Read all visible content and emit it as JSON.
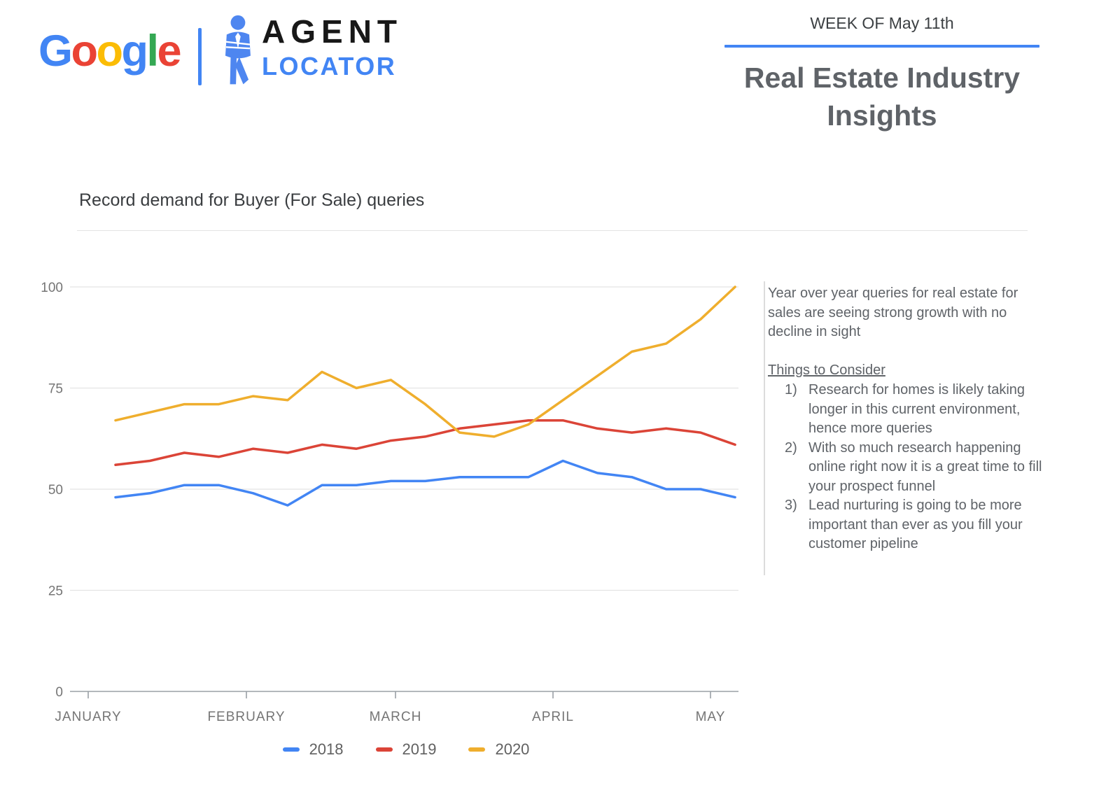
{
  "header": {
    "google_letters": [
      {
        "ch": "G",
        "color": "#4285F4"
      },
      {
        "ch": "o",
        "color": "#EA4335"
      },
      {
        "ch": "o",
        "color": "#FBBC05"
      },
      {
        "ch": "g",
        "color": "#4285F4"
      },
      {
        "ch": "l",
        "color": "#34A853"
      },
      {
        "ch": "e",
        "color": "#EA4335"
      }
    ],
    "agentlocator": {
      "line1": "AGENT",
      "line2": "LOCATOR"
    },
    "week_label": "WEEK OF May 11th",
    "title_line1": "Real Estate Industry",
    "title_line2": "Insights",
    "accent_color": "#4285F4"
  },
  "chart_section": {
    "title": "Record demand for Buyer (For Sale) queries"
  },
  "sidebar_notes": {
    "paragraph": "Year over year queries for real estate for sales are seeing strong growth with no decline in sight",
    "list_title": "Things to Consider",
    "items": [
      "Research for homes is likely taking longer in this current environment, hence more queries",
      "With so much research happening online right now it is a great time to fill your prospect funnel",
      "Lead nurturing is going to be more important than ever as you fill your customer pipeline"
    ]
  },
  "chart_data": {
    "type": "line",
    "title": "Record demand for Buyer (For Sale) queries",
    "x_unit": "weekly points, January through week of May 11",
    "x_tick_labels": [
      "JANUARY",
      "FEBRUARY",
      "MARCH",
      "APRIL",
      "MAY"
    ],
    "y_ticks": [
      0,
      25,
      50,
      75,
      100
    ],
    "ylim": [
      0,
      100
    ],
    "grid": true,
    "legend_position": "bottom",
    "series": [
      {
        "name": "2018",
        "color": "#4285F4",
        "values": [
          48,
          49,
          51,
          51,
          49,
          46,
          51,
          51,
          52,
          52,
          53,
          53,
          53,
          57,
          54,
          53,
          50,
          50,
          48
        ]
      },
      {
        "name": "2019",
        "color": "#DB4437",
        "values": [
          56,
          57,
          59,
          58,
          60,
          59,
          61,
          60,
          62,
          63,
          65,
          66,
          67,
          67,
          65,
          64,
          65,
          64,
          61
        ]
      },
      {
        "name": "2020",
        "color": "#EFAE2D",
        "values": [
          67,
          69,
          71,
          71,
          73,
          72,
          79,
          75,
          77,
          71,
          64,
          63,
          66,
          72,
          78,
          84,
          86,
          92,
          100
        ]
      }
    ],
    "axis_color": "#9aa0a6",
    "gridline_color": "#e4e4e4"
  }
}
